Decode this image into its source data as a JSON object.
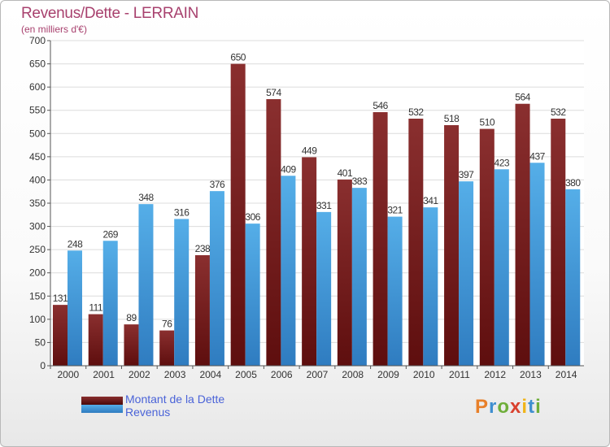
{
  "title": "Revenus/Dette - LERRAIN",
  "subtitle": "(en milliers d'€)",
  "logo": "Proxiti",
  "colors": {
    "debt_dark": "#5e0e0e",
    "debt_light": "#8a2f2f",
    "revenue_dark": "#2f7cc0",
    "revenue_light": "#55aee8",
    "title": "#a8416e",
    "legend_text": "#4a63d8"
  },
  "chart_data": {
    "type": "bar",
    "categories": [
      "2000",
      "2001",
      "2002",
      "2003",
      "2004",
      "2005",
      "2006",
      "2007",
      "2008",
      "2009",
      "2010",
      "2011",
      "2012",
      "2013",
      "2014"
    ],
    "series": [
      {
        "name": "Montant de la Dette",
        "values": [
          131,
          111,
          89,
          76,
          238,
          650,
          574,
          449,
          401,
          546,
          532,
          518,
          510,
          564,
          532
        ]
      },
      {
        "name": "Revenus",
        "values": [
          248,
          269,
          348,
          316,
          376,
          306,
          409,
          331,
          383,
          321,
          341,
          397,
          423,
          437,
          380
        ]
      }
    ],
    "ylim": [
      0,
      700
    ],
    "yticks": [
      0,
      50,
      100,
      150,
      200,
      250,
      300,
      350,
      400,
      450,
      500,
      550,
      600,
      650,
      700
    ],
    "grid": true,
    "legend_position": "bottom-left"
  }
}
